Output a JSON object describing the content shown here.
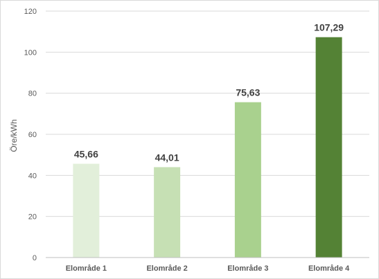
{
  "chart_data": {
    "type": "bar",
    "categories": [
      "Elområde 1",
      "Elområde 2",
      "Elområde 3",
      "Elområde 4"
    ],
    "values": [
      45.66,
      44.01,
      75.63,
      107.29
    ],
    "data_labels": [
      "45,66",
      "44,01",
      "75,63",
      "107,29"
    ],
    "ylabel": "Öre/kWh",
    "ylim": [
      0,
      120
    ],
    "yticks": [
      "0",
      "20",
      "40",
      "60",
      "80",
      "100",
      "120"
    ],
    "grid": true,
    "legend": "none",
    "colors": [
      "#e2efda",
      "#c6e0b4",
      "#a9d18e",
      "#548235"
    ]
  }
}
